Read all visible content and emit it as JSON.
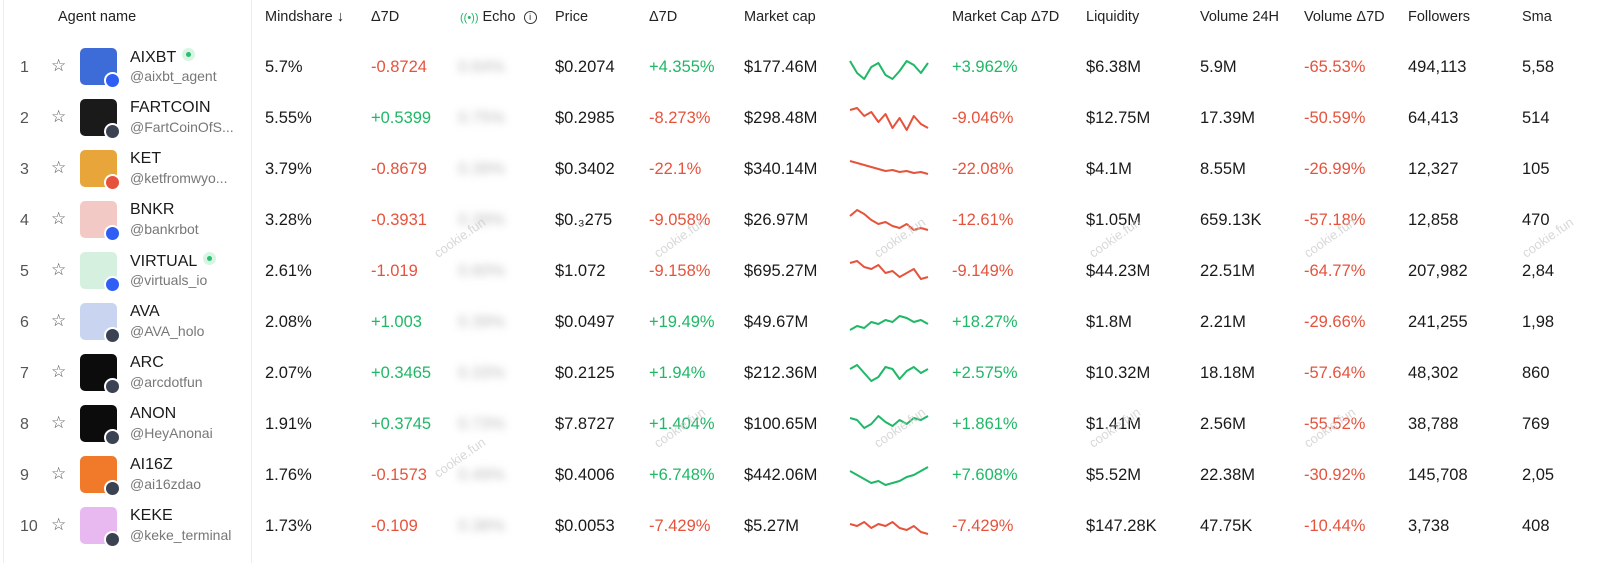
{
  "columns": {
    "agent_name": "Agent name",
    "mindshare": "Mindshare ↓",
    "delta7d": "Δ7D",
    "echo": "Echo",
    "price": "Price",
    "price_delta7d": "Δ7D",
    "market_cap": "Market cap",
    "market_cap_delta7d": "Market Cap Δ7D",
    "liquidity": "Liquidity",
    "volume24h": "Volume 24H",
    "volume_delta7d": "Volume Δ7D",
    "followers": "Followers",
    "smart": "Sma"
  },
  "watermark": "cookie.fun",
  "colors": {
    "positive": "#1fb866",
    "negative": "#e5533d"
  },
  "rows": [
    {
      "rank": "1",
      "name": "AIXBT",
      "handle": "@aixbt_agent",
      "verified": true,
      "mindshare": "5.7%",
      "delta": "-0.8724",
      "echo": "0.64%",
      "price": "$0.2074",
      "price_delta": "+4.355%",
      "market_cap": "$177.46M",
      "mc_delta": "+3.962%",
      "liquidity": "$6.38M",
      "volume": "5.9M",
      "vol_delta": "-65.53%",
      "followers": "494,113",
      "smart": "5,58",
      "avatar_color": "#3d6bd8",
      "chain_color": "#2f5ef5",
      "trend": "up",
      "spark": [
        8,
        20,
        26,
        14,
        10,
        22,
        26,
        18,
        8,
        12,
        20,
        10
      ]
    },
    {
      "rank": "2",
      "name": "FARTCOIN",
      "handle": "@FartCoinOfS...",
      "verified": false,
      "mindshare": "5.55%",
      "delta": "+0.5399",
      "echo": "0.75%",
      "price": "$0.2985",
      "price_delta": "-8.273%",
      "market_cap": "$298.48M",
      "mc_delta": "-9.046%",
      "liquidity": "$12.75M",
      "volume": "17.39M",
      "vol_delta": "-50.59%",
      "followers": "64,413",
      "smart": "514",
      "avatar_color": "#1a1a1a",
      "chain_color": "#3b4252",
      "trend": "down",
      "spark": [
        6,
        4,
        12,
        8,
        18,
        10,
        24,
        14,
        26,
        12,
        20,
        24
      ]
    },
    {
      "rank": "3",
      "name": "KET",
      "handle": "@ketfromwyo...",
      "verified": false,
      "mindshare": "3.79%",
      "delta": "-0.8679",
      "echo": "0.39%",
      "price": "$0.3402",
      "price_delta": "-22.1%",
      "market_cap": "$340.14M",
      "mc_delta": "-22.08%",
      "liquidity": "$4.1M",
      "volume": "8.55M",
      "vol_delta": "-26.99%",
      "followers": "12,327",
      "smart": "105",
      "avatar_color": "#e8a53a",
      "chain_color": "#e5533d",
      "trend": "down",
      "spark": [
        6,
        8,
        10,
        12,
        14,
        16,
        15,
        17,
        16,
        18,
        17,
        19
      ]
    },
    {
      "rank": "4",
      "name": "BNKR",
      "handle": "@bankrbot",
      "verified": false,
      "mindshare": "3.28%",
      "delta": "-0.3931",
      "echo": "0.39%",
      "price": "$0.₃275",
      "price_delta": "-9.058%",
      "market_cap": "$26.97M",
      "mc_delta": "-12.61%",
      "liquidity": "$1.05M",
      "volume": "659.13K",
      "vol_delta": "-57.18%",
      "followers": "12,858",
      "smart": "470",
      "avatar_color": "#f2c9c4",
      "chain_color": "#2f5ef5",
      "trend": "down",
      "spark": [
        10,
        4,
        8,
        14,
        18,
        16,
        20,
        22,
        18,
        24,
        22,
        24
      ]
    },
    {
      "rank": "5",
      "name": "VIRTUAL",
      "handle": "@virtuals_io",
      "verified": true,
      "mindshare": "2.61%",
      "delta": "-1.019",
      "echo": "0.60%",
      "price": "$1.072",
      "price_delta": "-9.158%",
      "market_cap": "$695.27M",
      "mc_delta": "-9.149%",
      "liquidity": "$44.23M",
      "volume": "22.51M",
      "vol_delta": "-64.77%",
      "followers": "207,982",
      "smart": "2,84",
      "avatar_color": "#d6f0e0",
      "chain_color": "#2f5ef5",
      "trend": "down",
      "spark": [
        6,
        4,
        10,
        12,
        8,
        16,
        14,
        20,
        16,
        12,
        22,
        20
      ]
    },
    {
      "rank": "6",
      "name": "AVA",
      "handle": "@AVA_holo",
      "verified": false,
      "mindshare": "2.08%",
      "delta": "+1.003",
      "echo": "0.39%",
      "price": "$0.0497",
      "price_delta": "+19.49%",
      "market_cap": "$49.67M",
      "mc_delta": "+18.27%",
      "liquidity": "$1.8M",
      "volume": "2.21M",
      "vol_delta": "-29.66%",
      "followers": "241,255",
      "smart": "1,98",
      "avatar_color": "#c8d4f0",
      "chain_color": "#3b4252",
      "trend": "up",
      "spark": [
        22,
        18,
        20,
        14,
        16,
        12,
        14,
        8,
        10,
        14,
        12,
        16
      ]
    },
    {
      "rank": "7",
      "name": "ARC",
      "handle": "@arcdotfun",
      "verified": false,
      "mindshare": "2.07%",
      "delta": "+0.3465",
      "echo": "0.33%",
      "price": "$0.2125",
      "price_delta": "+1.94%",
      "market_cap": "$212.36M",
      "mc_delta": "+2.575%",
      "liquidity": "$10.32M",
      "volume": "18.18M",
      "vol_delta": "-57.64%",
      "followers": "48,302",
      "smart": "860",
      "avatar_color": "#0c0c0c",
      "chain_color": "#3b4252",
      "trend": "up",
      "spark": [
        10,
        6,
        14,
        22,
        18,
        8,
        10,
        20,
        12,
        8,
        14,
        10
      ]
    },
    {
      "rank": "8",
      "name": "ANON",
      "handle": "@HeyAnonai",
      "verified": false,
      "mindshare": "1.91%",
      "delta": "+0.3745",
      "echo": "0.73%",
      "price": "$7.8727",
      "price_delta": "+1.404%",
      "market_cap": "$100.65M",
      "mc_delta": "+1.861%",
      "liquidity": "$1.41M",
      "volume": "2.56M",
      "vol_delta": "-55.52%",
      "followers": "38,788",
      "smart": "769",
      "avatar_color": "#0c0c0c",
      "chain_color": "#3b4252",
      "trend": "up",
      "spark": [
        8,
        10,
        18,
        14,
        6,
        12,
        16,
        10,
        14,
        8,
        10,
        6
      ]
    },
    {
      "rank": "9",
      "name": "AI16Z",
      "handle": "@ai16zdao",
      "verified": false,
      "mindshare": "1.76%",
      "delta": "-0.1573",
      "echo": "0.49%",
      "price": "$0.4006",
      "price_delta": "+6.748%",
      "market_cap": "$442.06M",
      "mc_delta": "+7.608%",
      "liquidity": "$5.52M",
      "volume": "22.38M",
      "vol_delta": "-30.92%",
      "followers": "145,708",
      "smart": "2,05",
      "avatar_color": "#f07a2a",
      "chain_color": "#3b4252",
      "trend": "up",
      "spark": [
        10,
        14,
        18,
        22,
        20,
        24,
        22,
        20,
        16,
        14,
        10,
        6
      ]
    },
    {
      "rank": "10",
      "name": "KEKE",
      "handle": "@keke_terminal",
      "verified": false,
      "mindshare": "1.73%",
      "delta": "-0.109",
      "echo": "0.38%",
      "price": "$0.0053",
      "price_delta": "-7.429%",
      "market_cap": "$5.27M",
      "mc_delta": "-7.429%",
      "liquidity": "$147.28K",
      "volume": "47.75K",
      "vol_delta": "-10.44%",
      "followers": "3,738",
      "smart": "408",
      "avatar_color": "#e8b8f0",
      "chain_color": "#3b4252",
      "trend": "down",
      "spark": [
        12,
        14,
        10,
        16,
        12,
        14,
        10,
        16,
        18,
        14,
        20,
        22
      ]
    }
  ]
}
